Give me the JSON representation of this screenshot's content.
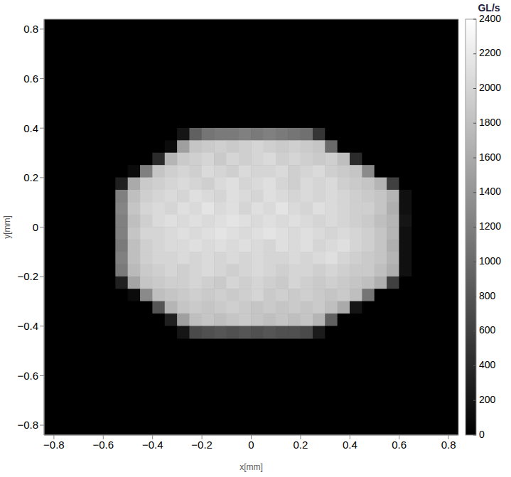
{
  "chart_data": {
    "type": "heatmap",
    "xlabel": "x[mm]",
    "ylabel": "y[mm]",
    "xlim": [
      -0.84,
      0.84
    ],
    "ylim": [
      -0.84,
      0.84
    ],
    "xticks": [
      {
        "value": -0.8,
        "label": "−0.8"
      },
      {
        "value": -0.6,
        "label": "−0.6"
      },
      {
        "value": -0.4,
        "label": "−0.4"
      },
      {
        "value": -0.2,
        "label": "−0.2"
      },
      0,
      0.2,
      0.4,
      0.6,
      0.8
    ],
    "yticks": [
      {
        "value": -0.8,
        "label": "−0.8"
      },
      {
        "value": -0.6,
        "label": "−0.6"
      },
      {
        "value": -0.4,
        "label": "−0.4"
      },
      {
        "value": -0.2,
        "label": "−0.2"
      },
      0,
      0.2,
      0.4,
      0.6,
      0.8
    ],
    "grid": false,
    "colorbar_label": "GL/s",
    "colorbar_lim": [
      0,
      2400
    ],
    "colorbar_ticks": [
      0,
      200,
      400,
      600,
      800,
      1000,
      1200,
      1400,
      1600,
      1800,
      2000,
      2200,
      2400
    ],
    "x": [
      -0.575,
      -0.525,
      -0.475,
      -0.425,
      -0.375,
      -0.325,
      -0.275,
      -0.225,
      -0.175,
      -0.125,
      -0.075,
      -0.025,
      0.025,
      0.075,
      0.125,
      0.175,
      0.225,
      0.275,
      0.325,
      0.375,
      0.425,
      0.475,
      0.525,
      0.575,
      0.625
    ],
    "y": [
      0.375,
      0.325,
      0.275,
      0.225,
      0.175,
      0.125,
      0.075,
      0.025,
      -0.025,
      -0.075,
      -0.125,
      -0.175,
      -0.225,
      -0.275,
      -0.325,
      -0.375,
      -0.425
    ],
    "cells": [
      [
        0,
        0,
        0,
        0,
        0,
        0,
        200,
        900,
        1100,
        1150,
        1150,
        1200,
        1150,
        1200,
        1150,
        1100,
        1050,
        500,
        0,
        0,
        0,
        0,
        0,
        0,
        0
      ],
      [
        0,
        0,
        0,
        0,
        0,
        100,
        1500,
        1850,
        1900,
        1950,
        1900,
        1950,
        2000,
        1950,
        1900,
        1950,
        1900,
        1850,
        1000,
        0,
        0,
        0,
        0,
        0,
        0
      ],
      [
        0,
        0,
        0,
        0,
        400,
        1700,
        1900,
        1950,
        2000,
        1900,
        2000,
        1950,
        2000,
        2050,
        1950,
        2000,
        1950,
        1900,
        1950,
        1800,
        400,
        0,
        0,
        0,
        0
      ],
      [
        0,
        0,
        100,
        1200,
        1850,
        1950,
        2000,
        1950,
        2050,
        2000,
        1950,
        2050,
        2000,
        2000,
        2050,
        1950,
        2000,
        2050,
        1950,
        1900,
        1850,
        1300,
        0,
        0,
        0
      ],
      [
        0,
        300,
        1600,
        1900,
        1950,
        2000,
        2050,
        2000,
        1950,
        2050,
        2100,
        2000,
        2050,
        2100,
        2000,
        1950,
        2050,
        2000,
        2050,
        1950,
        1900,
        1850,
        1700,
        600,
        0
      ],
      [
        0,
        1200,
        1800,
        1950,
        2000,
        2050,
        2000,
        2100,
        2050,
        2000,
        2100,
        2050,
        2000,
        2100,
        2050,
        2000,
        2050,
        2000,
        2050,
        2000,
        1950,
        1900,
        1850,
        1700,
        150
      ],
      [
        0,
        1250,
        1850,
        2000,
        2050,
        2000,
        2100,
        2050,
        2150,
        2050,
        2100,
        2000,
        2100,
        2050,
        2150,
        2050,
        2000,
        2100,
        2050,
        2000,
        1950,
        1950,
        1850,
        1650,
        150
      ],
      [
        0,
        1200,
        1800,
        1950,
        2050,
        2100,
        2050,
        2100,
        2050,
        2100,
        2150,
        2100,
        2050,
        2100,
        2050,
        2100,
        2050,
        2000,
        2050,
        2000,
        1950,
        1900,
        1800,
        1700,
        200
      ],
      [
        0,
        1200,
        1850,
        2000,
        2000,
        2050,
        2100,
        2050,
        2100,
        2150,
        2100,
        2050,
        2100,
        2150,
        2100,
        2050,
        2100,
        2050,
        2000,
        2050,
        2000,
        1950,
        1850,
        1700,
        150
      ],
      [
        0,
        1150,
        1800,
        1950,
        2000,
        2050,
        2050,
        2100,
        2050,
        2100,
        2050,
        2100,
        2050,
        2000,
        2100,
        2050,
        2100,
        2000,
        2050,
        2100,
        2000,
        1950,
        1850,
        1650,
        150
      ],
      [
        0,
        1200,
        1800,
        1950,
        2000,
        2000,
        2050,
        2000,
        2050,
        2000,
        2050,
        2000,
        2050,
        2000,
        2000,
        2050,
        2000,
        2050,
        2100,
        2000,
        1950,
        1900,
        1850,
        1700,
        150
      ],
      [
        0,
        1150,
        1750,
        1900,
        1950,
        2000,
        1950,
        2000,
        2050,
        2000,
        1950,
        2000,
        2050,
        2000,
        1950,
        2000,
        2000,
        1950,
        2000,
        1950,
        1900,
        1900,
        1800,
        1650,
        150
      ],
      [
        0,
        300,
        1550,
        1850,
        1900,
        1950,
        1950,
        2000,
        1950,
        1900,
        2000,
        1950,
        2000,
        1950,
        1900,
        2000,
        1950,
        1900,
        1950,
        1900,
        1850,
        1800,
        1650,
        600,
        0
      ],
      [
        0,
        0,
        100,
        1300,
        1800,
        1850,
        1900,
        1950,
        1900,
        1950,
        1900,
        1950,
        2000,
        1900,
        1950,
        1900,
        1950,
        1900,
        1850,
        1900,
        1800,
        1100,
        0,
        0,
        0
      ],
      [
        0,
        0,
        0,
        0,
        800,
        1700,
        1850,
        1900,
        1850,
        1900,
        1950,
        1900,
        1850,
        1900,
        1850,
        1900,
        1850,
        1900,
        1800,
        1600,
        200,
        0,
        0,
        0,
        0
      ],
      [
        0,
        0,
        0,
        0,
        0,
        300,
        1500,
        1800,
        1850,
        1800,
        1850,
        1900,
        1850,
        1800,
        1850,
        1800,
        1850,
        1700,
        900,
        0,
        0,
        0,
        0,
        0,
        0
      ],
      [
        0,
        0,
        0,
        0,
        0,
        0,
        200,
        700,
        750,
        800,
        750,
        800,
        750,
        800,
        750,
        750,
        700,
        250,
        0,
        0,
        0,
        0,
        0,
        0,
        0
      ]
    ]
  }
}
